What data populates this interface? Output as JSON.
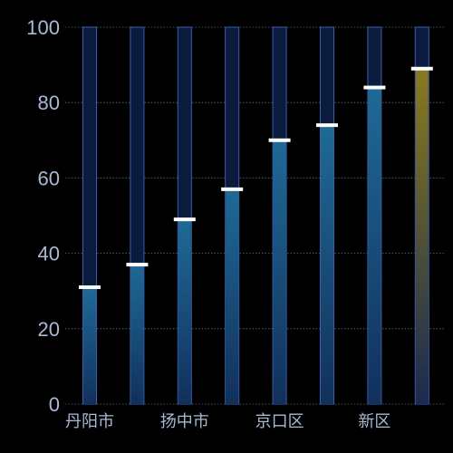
{
  "chart_data": {
    "type": "bar",
    "categories": [
      "丹阳市",
      "",
      "扬中市",
      "",
      "京口区",
      "",
      "新区",
      ""
    ],
    "values": [
      31,
      37,
      49,
      57,
      70,
      74,
      84,
      89
    ],
    "max_values": [
      100,
      100,
      100,
      100,
      100,
      100,
      100,
      100
    ],
    "ylim": [
      0,
      100
    ],
    "yticks": [
      "0",
      "20",
      "40",
      "60",
      "80",
      "100"
    ],
    "grid": true,
    "highlight_index": 7,
    "colors": {
      "background": "#000000",
      "track_fill": "#0b1b3d",
      "track_stroke": "#3a5fb0",
      "bar_top": "#1f6a96",
      "bar_bottom": "#12305c",
      "highlight_top": "#8a7a1f",
      "highlight_bottom": "#1a2a50",
      "marker": "#ffffff",
      "grid": "#5a6b7a",
      "axis_text": "#a9b8d6",
      "category_text": "#a9b8d6"
    }
  }
}
